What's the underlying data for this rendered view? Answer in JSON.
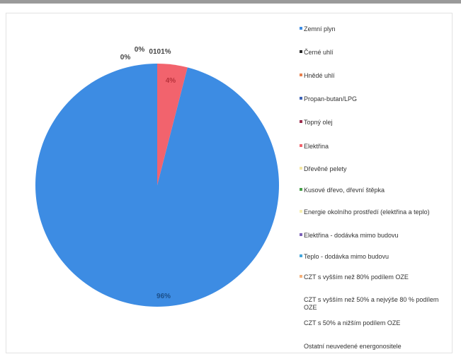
{
  "chart_data": {
    "type": "pie",
    "title": "",
    "legend_position": "right",
    "slices": [
      {
        "name": "Zemní plyn",
        "value": 96,
        "label": "96%",
        "color": "#3d8ce3"
      },
      {
        "name": "Černé uhlí",
        "value": 0,
        "label": "0%",
        "color": "#2a2a2a"
      },
      {
        "name": "Hnědé uhlí",
        "value": 0,
        "label": "0%",
        "color": "#e8804d"
      },
      {
        "name": "Propan-butan/LPG",
        "value": 0,
        "label": "",
        "color": "#3f63b5"
      },
      {
        "name": "Topný olej",
        "value": 0,
        "label": "",
        "color": "#9c2f4f"
      },
      {
        "name": "Elektřina",
        "value": 4,
        "label": "4%",
        "color": "#f2636d"
      },
      {
        "name": "Dřevěné pelety",
        "value": 0,
        "label": "",
        "color": "#f4e7a3"
      },
      {
        "name": "Kusové dřevo, dřevní štěpka",
        "value": 0,
        "label": "",
        "color": "#47a04a"
      },
      {
        "name": "Energie okolního prostředí (elektřina a teplo)",
        "value": 0,
        "label": "",
        "color": "#f6efb0"
      },
      {
        "name": "Elektřina - dodávka mimo budovu",
        "value": 0,
        "label": "",
        "color": "#7b61b8"
      },
      {
        "name": "Teplo - dodávka mimo budovu",
        "value": 0,
        "label": "",
        "color": "#45a6dc"
      },
      {
        "name": "CZT s vyšším než 80% podílem OZE",
        "value": 0,
        "label": "",
        "color": "#f5b07a"
      },
      {
        "name": "CZT s vyšším než 50% a nejvýše 80 % podílem OZE",
        "value": 0,
        "label": "",
        "color": "#ffffff"
      },
      {
        "name": "CZT s 50% a nižším podílem OZE",
        "value": 0,
        "label": "",
        "color": "#ffffff"
      },
      {
        "name": "Ostatní neuvedené energonositele",
        "value": 0,
        "label": "",
        "color": "#ffffff"
      }
    ],
    "small_labels_text": "0101%"
  }
}
